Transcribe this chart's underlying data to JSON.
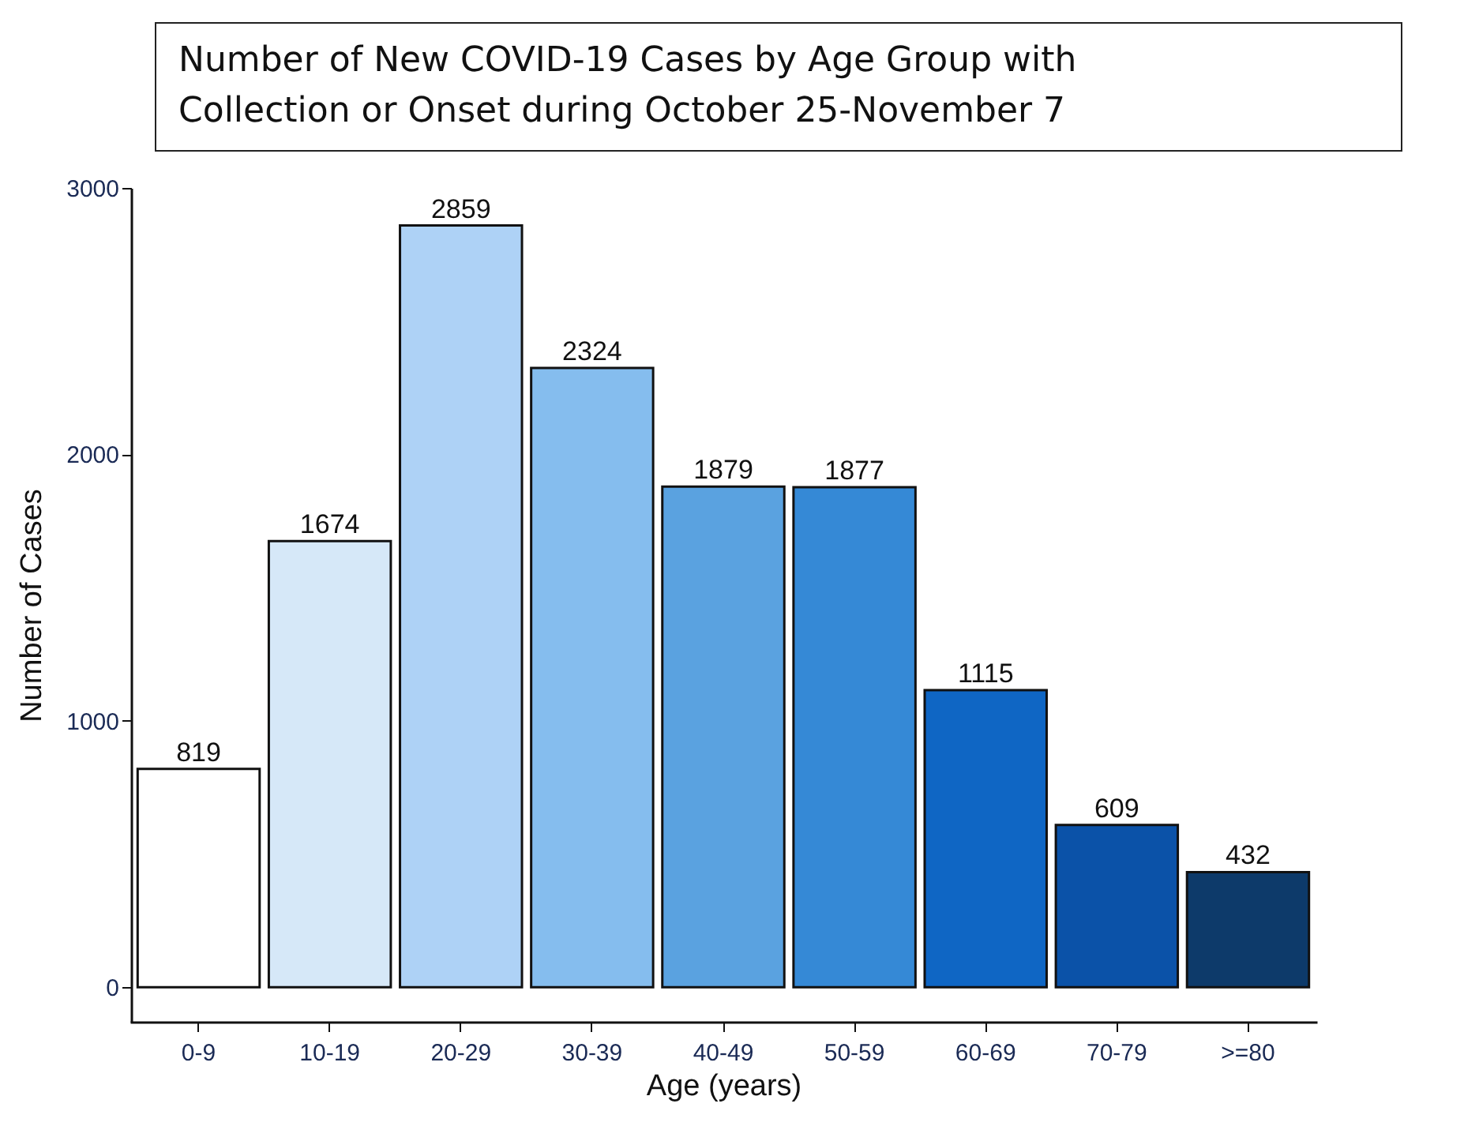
{
  "chart_data": {
    "type": "bar",
    "title": "Number of New COVID-19 Cases by Age Group with Collection or Onset during October 25-November 7",
    "xlabel": "Age (years)",
    "ylabel": "Number of Cases",
    "categories": [
      "0-9",
      "10-19",
      "20-29",
      "30-39",
      "40-49",
      "50-59",
      "60-69",
      "70-79",
      ">=80"
    ],
    "values": [
      819,
      1674,
      2859,
      2324,
      1879,
      1877,
      1115,
      609,
      432
    ],
    "colors": [
      "#ffffff",
      "#d6e8f8",
      "#aed2f6",
      "#85bdee",
      "#5aa2e0",
      "#3589d6",
      "#0f66c4",
      "#0b52a8",
      "#0d3a6a"
    ],
    "ylim": [
      -130,
      3000
    ],
    "yticks": [
      0,
      1000,
      2000,
      3000
    ],
    "grid": false,
    "data_labels": true
  }
}
